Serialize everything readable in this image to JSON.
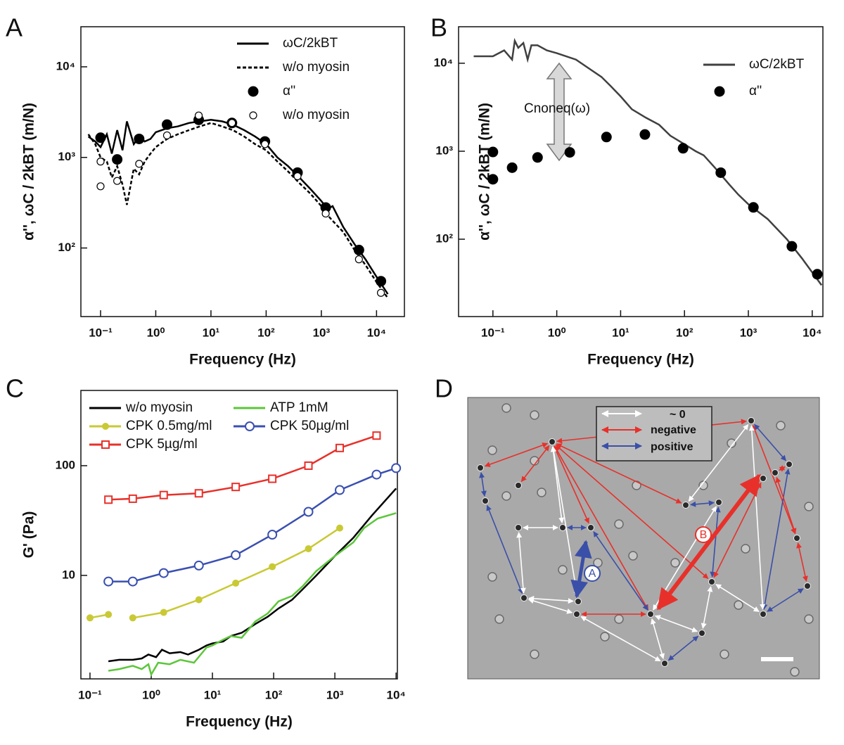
{
  "chart_data": [
    {
      "type": "line",
      "panel": "A",
      "xlabel": "Frequency (Hz)",
      "ylabel": "α'', ωC / 2kBT (m/N)",
      "xscale": "log",
      "yscale": "log",
      "legend": "upper right",
      "xlim": [
        0.044,
        32000
      ],
      "ylim": [
        17.5,
        27700
      ],
      "xticks": [
        {
          "value": 0.1,
          "label": "10⁻¹"
        },
        {
          "value": 1,
          "label": "10⁰"
        },
        {
          "value": 10,
          "label": "10¹"
        },
        {
          "value": 100,
          "label": "10²"
        },
        {
          "value": 1000,
          "label": "10³"
        },
        {
          "value": 10000,
          "label": "10⁴"
        }
      ],
      "yticks": [
        {
          "value": 100,
          "label": "10²"
        },
        {
          "value": 1000,
          "label": "10³"
        },
        {
          "value": 10000,
          "label": "10⁴"
        }
      ],
      "series": [
        {
          "name": "ωC/2kBT",
          "color": "#000000",
          "line": "solid",
          "marker": "none",
          "x": [
            0.06,
            0.08,
            0.1,
            0.13,
            0.16,
            0.2,
            0.25,
            0.3,
            0.4,
            0.5,
            0.63,
            0.8,
            1,
            1.6,
            2.5,
            4,
            6.3,
            10,
            16,
            25,
            40,
            63,
            100,
            160,
            250,
            400,
            630,
            1000,
            1300,
            1600,
            2500,
            4000,
            6300,
            10000,
            16000
          ],
          "values": [
            1700,
            1500,
            1300,
            1800,
            1100,
            2000,
            1200,
            2500,
            1400,
            1700,
            1500,
            1600,
            1900,
            2100,
            2200,
            2400,
            2500,
            2600,
            2500,
            2300,
            2000,
            1700,
            1400,
            1000,
            800,
            600,
            450,
            330,
            270,
            290,
            170,
            110,
            75,
            48,
            31
          ]
        },
        {
          "name": "w/o myosin",
          "color": "#000000",
          "line": "dashed",
          "marker": "none",
          "x": [
            0.06,
            0.08,
            0.1,
            0.13,
            0.16,
            0.2,
            0.25,
            0.3,
            0.4,
            0.5,
            0.63,
            0.8,
            1,
            1.6,
            2.5,
            4,
            6.3,
            10,
            16,
            25,
            40,
            63,
            100,
            160,
            250,
            400,
            630,
            1000,
            1300,
            1600,
            2500,
            4000,
            6300,
            10000,
            16000
          ],
          "values": [
            1800,
            1400,
            1000,
            900,
            600,
            800,
            500,
            300,
            750,
            650,
            900,
            1100,
            1300,
            1600,
            1800,
            2000,
            2200,
            2400,
            2200,
            2000,
            1700,
            1400,
            1200,
            900,
            700,
            520,
            400,
            290,
            230,
            200,
            150,
            95,
            65,
            42,
            28
          ]
        },
        {
          "name": "α''",
          "color": "#000000",
          "line": "none",
          "marker": "filled-circle",
          "x": [
            0.1,
            0.2,
            0.5,
            1.6,
            6,
            24,
            95,
            370,
            1200,
            4800,
            12000
          ],
          "values": [
            1650,
            950,
            1600,
            2300,
            2600,
            2400,
            1500,
            680,
            280,
            95,
            43
          ]
        },
        {
          "name": "w/o myosin",
          "color": "#000000",
          "line": "none",
          "marker": "open-circle",
          "x": [
            0.1,
            0.1,
            0.2,
            0.5,
            1.6,
            6,
            24,
            95,
            370,
            1200,
            4800,
            12000
          ],
          "values": [
            900,
            480,
            550,
            850,
            1750,
            2900,
            2400,
            1400,
            620,
            240,
            75,
            32
          ]
        }
      ]
    },
    {
      "type": "line",
      "panel": "B",
      "xlabel": "Frequency (Hz)",
      "ylabel": "α'', ωC / 2kBT (m/N)",
      "xscale": "log",
      "yscale": "log",
      "legend": "upper right",
      "annotation": "Cnoneq(ω)",
      "xlim": [
        0.029,
        14700
      ],
      "ylim": [
        13.2,
        26000
      ],
      "xticks": [
        {
          "value": 0.1,
          "label": "10⁻¹"
        },
        {
          "value": 1,
          "label": "10⁰"
        },
        {
          "value": 10,
          "label": "10¹"
        },
        {
          "value": 100,
          "label": "10²"
        },
        {
          "value": 1000,
          "label": "10³"
        },
        {
          "value": 10000,
          "label": "10⁴"
        }
      ],
      "yticks": [
        {
          "value": 100,
          "label": "10²"
        },
        {
          "value": 1000,
          "label": "10³"
        },
        {
          "value": 10000,
          "label": "10⁴"
        }
      ],
      "series": [
        {
          "name": "ωC/2kBT",
          "color": "#404040",
          "line": "solid",
          "marker": "none",
          "x": [
            0.05,
            0.1,
            0.15,
            0.2,
            0.22,
            0.25,
            0.3,
            0.35,
            0.4,
            0.5,
            0.7,
            1,
            2,
            3,
            5,
            7,
            10,
            15,
            25,
            40,
            60,
            100,
            150,
            200,
            300,
            500,
            700,
            1000,
            2000,
            4000,
            7000,
            14000
          ],
          "values": [
            12000,
            12000,
            14000,
            11000,
            18000,
            15000,
            17000,
            11000,
            16000,
            16000,
            14000,
            13000,
            11000,
            9000,
            7000,
            5500,
            4200,
            3000,
            2400,
            2000,
            1500,
            1200,
            1000,
            900,
            650,
            420,
            320,
            250,
            170,
            100,
            60,
            30
          ]
        },
        {
          "name": "α''",
          "color": "#000000",
          "line": "none",
          "marker": "filled-circle",
          "x": [
            0.1,
            0.1,
            0.2,
            0.5,
            1.6,
            6,
            24,
            95,
            370,
            1200,
            4800,
            12000
          ],
          "values": [
            980,
            480,
            650,
            850,
            970,
            1450,
            1550,
            1080,
            570,
            230,
            83,
            40
          ]
        }
      ]
    },
    {
      "type": "line",
      "panel": "C",
      "xlabel": "Frequency (Hz)",
      "ylabel": "G' (Pa)",
      "xscale": "log",
      "yscale": "log",
      "legend": "upper left",
      "xlim": [
        0.071,
        10500
      ],
      "ylim": [
        1.14,
        485
      ],
      "xticks": [
        {
          "value": 0.1,
          "label": "10⁻¹"
        },
        {
          "value": 1,
          "label": "10⁰"
        },
        {
          "value": 10,
          "label": "10¹"
        },
        {
          "value": 100,
          "label": "10²"
        },
        {
          "value": 1000,
          "label": "10³"
        },
        {
          "value": 10000,
          "label": "10⁴"
        }
      ],
      "yticks": [
        10,
        100
      ],
      "series": [
        {
          "name": "w/o myosin",
          "color": "#000000",
          "line": "solid",
          "marker": "none",
          "x": [
            0.2,
            0.3,
            0.5,
            0.7,
            0.9,
            1.2,
            1.5,
            2,
            3,
            4,
            6,
            8,
            10,
            15,
            20,
            30,
            50,
            80,
            120,
            200,
            300,
            500,
            1000,
            2000,
            4000,
            10000
          ],
          "values": [
            1.65,
            1.7,
            1.7,
            1.75,
            1.9,
            1.8,
            2.1,
            1.95,
            2,
            1.9,
            2.1,
            2.3,
            2.4,
            2.5,
            2.8,
            3,
            3.6,
            4.2,
            5,
            6,
            7.5,
            10,
            15,
            22,
            35,
            62
          ]
        },
        {
          "name": "ATP 1mM",
          "color": "#5cc63a",
          "line": "solid",
          "marker": "none",
          "x": [
            0.2,
            0.3,
            0.5,
            0.7,
            0.9,
            1,
            1.3,
            2,
            3,
            5,
            8,
            10,
            15,
            20,
            30,
            50,
            80,
            120,
            200,
            300,
            500,
            1000,
            2000,
            3000,
            5000,
            10000
          ],
          "values": [
            1.35,
            1.4,
            1.5,
            1.4,
            1.55,
            1.25,
            1.6,
            1.55,
            1.7,
            1.6,
            2.2,
            2.3,
            2.6,
            2.8,
            2.7,
            3.8,
            4.5,
            5.8,
            6.5,
            8,
            11,
            15,
            20,
            27,
            33,
            37
          ]
        },
        {
          "name": "CPK 0.5mg/ml",
          "color": "#c9c935",
          "line": "solid",
          "marker": "filled-circle",
          "x": [
            0.1,
            0.2,
            0.3,
            0.5,
            1.6,
            6,
            24,
            95,
            370,
            1200
          ],
          "values": [
            4.1,
            4.4,
            null,
            4.1,
            4.6,
            6,
            8.5,
            12,
            17.5,
            27
          ]
        },
        {
          "name": "CPK 50µg/ml",
          "color": "#3a4fb0",
          "line": "solid",
          "marker": "open-circle",
          "x": [
            0.2,
            0.5,
            1.6,
            6,
            24,
            95,
            370,
            1200,
            4800,
            10000
          ],
          "values": [
            8.8,
            8.8,
            10.5,
            12.3,
            15.3,
            23.5,
            38,
            60,
            83,
            95
          ]
        },
        {
          "name": "CPK 5µg/ml",
          "color": "#e8302a",
          "line": "solid",
          "marker": "open-square",
          "x": [
            0.2,
            0.5,
            1.6,
            6,
            24,
            95,
            370,
            1200,
            4800
          ],
          "values": [
            49,
            50,
            54,
            56,
            64,
            76,
            100,
            145,
            188
          ]
        }
      ]
    }
  ],
  "micrograph": {
    "panel": "D",
    "legend": [
      "~ 0",
      "negative",
      "positive"
    ],
    "labels": [
      "A",
      "B"
    ]
  }
}
